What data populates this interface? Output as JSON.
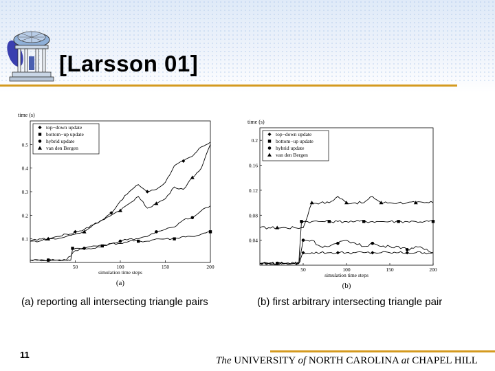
{
  "slide": {
    "title": "[Larsson 01]",
    "caption_a": "(a)   reporting all intersecting triangle pairs",
    "caption_b": "(b) first arbitrary intersecting triangle pair",
    "slide_number": "11",
    "footer": {
      "the": "The",
      "university": " UNIVERSITY ",
      "of": "of",
      "north_carolina": " NORTH CAROLINA ",
      "at": "at",
      "chapel_hill": " CHAPEL HILL"
    },
    "colors": {
      "accent_rule": "#d49a1f",
      "header_bg": "#dfeaf8"
    },
    "logo_icon": "old-well-logo-icon"
  },
  "chart_data": [
    {
      "type": "line",
      "sublabel": "(a)",
      "ylabel": "time (s)",
      "xlabel": "simulation time steps",
      "xlim": [
        0,
        200
      ],
      "ylim": [
        0,
        0.6
      ],
      "xticks": [
        50,
        100,
        150,
        200
      ],
      "yticks": [
        0.1,
        0.2,
        0.3,
        0.4,
        0.5
      ],
      "ytick_labels": [
        "0.1",
        "0.2",
        "0.3",
        "0.4",
        "0.5"
      ],
      "legend": [
        "top−down update",
        "bottom−up update",
        "hybrid update",
        "van den Bergen"
      ],
      "legend_markers": [
        "diamond",
        "square",
        "circle",
        "triangle"
      ],
      "legend_position": "top-left",
      "series": [
        {
          "name": "top−down update",
          "marker": "diamond",
          "x": [
            0,
            10,
            20,
            30,
            40,
            45,
            50,
            60,
            70,
            80,
            90,
            100,
            110,
            120,
            130,
            140,
            150,
            160,
            170,
            180,
            190,
            200
          ],
          "y": [
            0.09,
            0.1,
            0.1,
            0.11,
            0.12,
            0.12,
            0.13,
            0.14,
            0.16,
            0.18,
            0.21,
            0.26,
            0.3,
            0.33,
            0.3,
            0.31,
            0.34,
            0.41,
            0.43,
            0.45,
            0.49,
            0.51
          ]
        },
        {
          "name": "bottom−up update",
          "marker": "square",
          "x": [
            0,
            10,
            20,
            30,
            40,
            45,
            47,
            50,
            60,
            70,
            80,
            90,
            100,
            110,
            120,
            130,
            140,
            150,
            160,
            170,
            180,
            190,
            200
          ],
          "y": [
            0.01,
            0.01,
            0.01,
            0.01,
            0.01,
            0.01,
            0.06,
            0.06,
            0.06,
            0.07,
            0.07,
            0.08,
            0.08,
            0.09,
            0.09,
            0.09,
            0.1,
            0.1,
            0.1,
            0.11,
            0.11,
            0.12,
            0.13
          ]
        },
        {
          "name": "hybrid update",
          "marker": "circle",
          "x": [
            0,
            10,
            20,
            30,
            40,
            50,
            60,
            70,
            80,
            90,
            100,
            110,
            120,
            130,
            140,
            150,
            160,
            170,
            180,
            190,
            200
          ],
          "y": [
            0.01,
            0.01,
            0.01,
            0.01,
            0.01,
            0.05,
            0.06,
            0.06,
            0.07,
            0.08,
            0.09,
            0.1,
            0.1,
            0.11,
            0.13,
            0.14,
            0.15,
            0.18,
            0.19,
            0.22,
            0.24
          ]
        },
        {
          "name": "van den Bergen",
          "marker": "triangle",
          "x": [
            0,
            10,
            20,
            30,
            40,
            50,
            60,
            70,
            80,
            90,
            100,
            110,
            120,
            130,
            140,
            150,
            160,
            170,
            180,
            190,
            200
          ],
          "y": [
            0.09,
            0.09,
            0.1,
            0.1,
            0.11,
            0.12,
            0.13,
            0.16,
            0.18,
            0.2,
            0.22,
            0.25,
            0.28,
            0.23,
            0.25,
            0.27,
            0.32,
            0.31,
            0.36,
            0.4,
            0.5
          ]
        }
      ]
    },
    {
      "type": "line",
      "sublabel": "(b)",
      "ylabel": "time (s)",
      "xlabel": "simulation time steps",
      "xlim": [
        0,
        200
      ],
      "ylim": [
        0,
        0.22
      ],
      "xticks": [
        50,
        100,
        150,
        200
      ],
      "yticks": [
        0.04,
        0.08,
        0.12,
        0.16,
        0.2
      ],
      "ytick_labels": [
        "0.04",
        "0.08",
        "0.12",
        "0.16",
        "0.2"
      ],
      "legend": [
        "top−down update",
        "bottom−up update",
        "hybrid update",
        "van den Bergen"
      ],
      "legend_markers": [
        "diamond",
        "square",
        "circle",
        "triangle"
      ],
      "legend_position": "top-left",
      "series": [
        {
          "name": "van den Bergen",
          "marker": "triangle",
          "x": [
            0,
            10,
            20,
            30,
            40,
            50,
            60,
            70,
            80,
            90,
            100,
            110,
            120,
            130,
            140,
            150,
            160,
            170,
            180,
            190,
            200
          ],
          "y": [
            0.06,
            0.06,
            0.06,
            0.06,
            0.06,
            0.06,
            0.1,
            0.1,
            0.1,
            0.11,
            0.1,
            0.1,
            0.1,
            0.11,
            0.1,
            0.1,
            0.1,
            0.1,
            0.1,
            0.1,
            0.1
          ]
        },
        {
          "name": "bottom−up update",
          "marker": "square",
          "x": [
            0,
            10,
            20,
            30,
            40,
            45,
            48,
            50,
            60,
            70,
            80,
            90,
            100,
            110,
            120,
            130,
            140,
            150,
            160,
            170,
            180,
            190,
            200
          ],
          "y": [
            0.003,
            0.003,
            0.003,
            0.003,
            0.003,
            0.003,
            0.07,
            0.07,
            0.07,
            0.07,
            0.07,
            0.07,
            0.07,
            0.07,
            0.07,
            0.07,
            0.07,
            0.07,
            0.07,
            0.07,
            0.07,
            0.07,
            0.07
          ]
        },
        {
          "name": "top−down update",
          "marker": "diamond",
          "x": [
            0,
            10,
            20,
            30,
            40,
            45,
            50,
            60,
            70,
            80,
            90,
            100,
            110,
            120,
            130,
            140,
            150,
            160,
            170,
            180,
            190,
            200
          ],
          "y": [
            0.003,
            0.003,
            0.003,
            0.003,
            0.003,
            0.003,
            0.02,
            0.02,
            0.02,
            0.02,
            0.02,
            0.02,
            0.02,
            0.02,
            0.02,
            0.02,
            0.02,
            0.02,
            0.02,
            0.02,
            0.02,
            0.02
          ]
        },
        {
          "name": "hybrid update",
          "marker": "circle",
          "x": [
            0,
            10,
            20,
            30,
            40,
            45,
            50,
            60,
            70,
            80,
            90,
            100,
            110,
            120,
            130,
            140,
            150,
            160,
            170,
            180,
            190,
            200
          ],
          "y": [
            0.003,
            0.003,
            0.003,
            0.003,
            0.003,
            0.003,
            0.04,
            0.04,
            0.03,
            0.03,
            0.035,
            0.04,
            0.035,
            0.03,
            0.035,
            0.03,
            0.03,
            0.03,
            0.025,
            0.03,
            0.025,
            0.02
          ]
        }
      ]
    }
  ]
}
